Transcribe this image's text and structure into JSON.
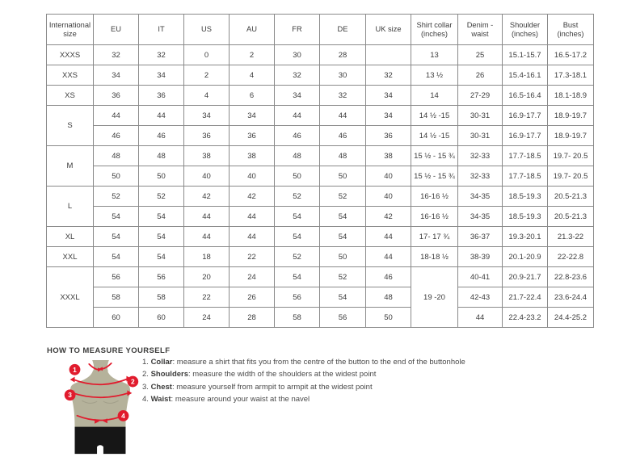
{
  "size_chart": {
    "columns": [
      "International size",
      "EU",
      "IT",
      "US",
      "AU",
      "FR",
      "DE",
      "UK size",
      "Shirt collar (inches)",
      "Denim - waist",
      "Shoulder (inches)",
      "Bust (inches)"
    ],
    "rows": [
      {
        "cells": [
          {
            "t": "XXXS"
          },
          {
            "t": "32"
          },
          {
            "t": "32"
          },
          {
            "t": "0"
          },
          {
            "t": "2"
          },
          {
            "t": "30"
          },
          {
            "t": "28"
          },
          {
            "t": ""
          },
          {
            "t": "13"
          },
          {
            "t": "25"
          },
          {
            "t": "15.1-15.7"
          },
          {
            "t": "16.5-17.2"
          }
        ]
      },
      {
        "cells": [
          {
            "t": "XXS"
          },
          {
            "t": "34"
          },
          {
            "t": "34"
          },
          {
            "t": "2"
          },
          {
            "t": "4"
          },
          {
            "t": "32"
          },
          {
            "t": "30"
          },
          {
            "t": "32"
          },
          {
            "t": "13 ½"
          },
          {
            "t": "26"
          },
          {
            "t": "15.4-16.1"
          },
          {
            "t": "17.3-18.1"
          }
        ]
      },
      {
        "cells": [
          {
            "t": "XS"
          },
          {
            "t": "36"
          },
          {
            "t": "36"
          },
          {
            "t": "4"
          },
          {
            "t": "6"
          },
          {
            "t": "34"
          },
          {
            "t": "32"
          },
          {
            "t": "34"
          },
          {
            "t": "14"
          },
          {
            "t": "27-29"
          },
          {
            "t": "16.5-16.4"
          },
          {
            "t": "18.1-18.9"
          }
        ]
      },
      {
        "cells": [
          {
            "t": "S",
            "rs": 2
          },
          {
            "t": "44"
          },
          {
            "t": "44"
          },
          {
            "t": "34"
          },
          {
            "t": "34"
          },
          {
            "t": "44"
          },
          {
            "t": "44"
          },
          {
            "t": "34"
          },
          {
            "t": "14 ½ -15"
          },
          {
            "t": "30-31"
          },
          {
            "t": "16.9-17.7"
          },
          {
            "t": "18.9-19.7"
          }
        ]
      },
      {
        "cells": [
          {
            "t": "46"
          },
          {
            "t": "46"
          },
          {
            "t": "36"
          },
          {
            "t": "36"
          },
          {
            "t": "46"
          },
          {
            "t": "46"
          },
          {
            "t": "36"
          },
          {
            "t": "14 ½ -15"
          },
          {
            "t": "30-31"
          },
          {
            "t": "16.9-17.7"
          },
          {
            "t": "18.9-19.7"
          }
        ]
      },
      {
        "cells": [
          {
            "t": "M",
            "rs": 2
          },
          {
            "t": "48"
          },
          {
            "t": "48"
          },
          {
            "t": "38"
          },
          {
            "t": "38"
          },
          {
            "t": "48"
          },
          {
            "t": "48"
          },
          {
            "t": "38"
          },
          {
            "t": "15 ½ - 15 ¾"
          },
          {
            "t": "32-33"
          },
          {
            "t": "17.7-18.5"
          },
          {
            "t": "19.7- 20.5"
          }
        ]
      },
      {
        "cells": [
          {
            "t": "50"
          },
          {
            "t": "50"
          },
          {
            "t": "40"
          },
          {
            "t": "40"
          },
          {
            "t": "50"
          },
          {
            "t": "50"
          },
          {
            "t": "40"
          },
          {
            "t": "15 ½ - 15 ¾"
          },
          {
            "t": "32-33"
          },
          {
            "t": "17.7-18.5"
          },
          {
            "t": "19.7- 20.5"
          }
        ]
      },
      {
        "cells": [
          {
            "t": "L",
            "rs": 2
          },
          {
            "t": "52"
          },
          {
            "t": "52"
          },
          {
            "t": "42"
          },
          {
            "t": "42"
          },
          {
            "t": "52"
          },
          {
            "t": "52"
          },
          {
            "t": "40"
          },
          {
            "t": "16-16 ½"
          },
          {
            "t": "34-35"
          },
          {
            "t": "18.5-19.3"
          },
          {
            "t": "20.5-21.3"
          }
        ]
      },
      {
        "cells": [
          {
            "t": "54"
          },
          {
            "t": "54"
          },
          {
            "t": "44"
          },
          {
            "t": "44"
          },
          {
            "t": "54"
          },
          {
            "t": "54"
          },
          {
            "t": "42"
          },
          {
            "t": "16-16 ½"
          },
          {
            "t": "34-35"
          },
          {
            "t": "18.5-19.3"
          },
          {
            "t": "20.5-21.3"
          }
        ]
      },
      {
        "cells": [
          {
            "t": "XL"
          },
          {
            "t": "54"
          },
          {
            "t": "54"
          },
          {
            "t": "44"
          },
          {
            "t": "44"
          },
          {
            "t": "54"
          },
          {
            "t": "54"
          },
          {
            "t": "44"
          },
          {
            "t": "17- 17 ¾"
          },
          {
            "t": "36-37"
          },
          {
            "t": "19.3-20.1"
          },
          {
            "t": "21.3-22"
          }
        ]
      },
      {
        "cells": [
          {
            "t": "XXL"
          },
          {
            "t": "54"
          },
          {
            "t": "54"
          },
          {
            "t": "18"
          },
          {
            "t": "22"
          },
          {
            "t": "52"
          },
          {
            "t": "50"
          },
          {
            "t": "44"
          },
          {
            "t": "18-18 ½"
          },
          {
            "t": "38-39"
          },
          {
            "t": "20.1-20.9"
          },
          {
            "t": "22-22.8"
          }
        ]
      },
      {
        "cells": [
          {
            "t": "XXXL",
            "rs": 3
          },
          {
            "t": "56"
          },
          {
            "t": "56"
          },
          {
            "t": "20"
          },
          {
            "t": "24"
          },
          {
            "t": "54"
          },
          {
            "t": "52"
          },
          {
            "t": "46"
          },
          {
            "t": "19 -20",
            "rs": 3
          },
          {
            "t": "40-41"
          },
          {
            "t": "20.9-21.7"
          },
          {
            "t": "22.8-23.6"
          }
        ]
      },
      {
        "cells": [
          {
            "t": "58"
          },
          {
            "t": "58"
          },
          {
            "t": "22"
          },
          {
            "t": "26"
          },
          {
            "t": "56"
          },
          {
            "t": "54"
          },
          {
            "t": "48"
          },
          {
            "t": "42-43"
          },
          {
            "t": "21.7-22.4"
          },
          {
            "t": "23.6-24.4"
          }
        ]
      },
      {
        "cells": [
          {
            "t": "60"
          },
          {
            "t": "60"
          },
          {
            "t": "24"
          },
          {
            "t": "28"
          },
          {
            "t": "58"
          },
          {
            "t": "56"
          },
          {
            "t": "50"
          },
          {
            "t": "44"
          },
          {
            "t": "22.4-23.2"
          },
          {
            "t": "24.4-25.2"
          }
        ]
      }
    ]
  },
  "measure_guide": {
    "heading": "HOW TO MEASURE YOURSELF",
    "steps": [
      {
        "num": "1.",
        "term": "Collar",
        "text": ": measure a shirt that fits you from the centre of the button to the end of the buttonhole"
      },
      {
        "num": "2.",
        "term": "Shoulders",
        "text": ": measure the width of the shoulders at the widest point"
      },
      {
        "num": "3.",
        "term": "Chest",
        "text": ": measure yourself from armpit to armpit at the widest point"
      },
      {
        "num": "4.",
        "term": "Waist",
        "text": ": measure around your waist at the navel"
      }
    ],
    "figure_markers": {
      "m1": "1",
      "m2": "2",
      "m3": "3",
      "m4": "4"
    }
  },
  "colors": {
    "accent_red": "#e11b2d",
    "torso": "#b5b29b",
    "pants": "#161616",
    "table_border": "#8a8a8a",
    "text": "#3d3d3d"
  }
}
